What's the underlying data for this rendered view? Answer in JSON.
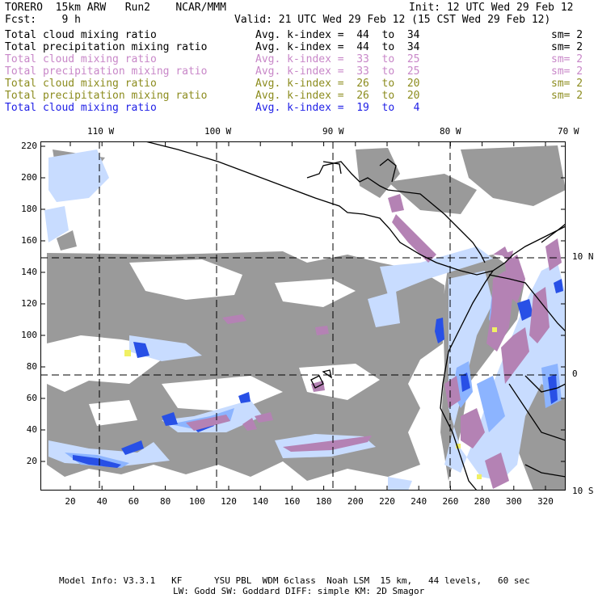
{
  "header": {
    "title": "TORERO  15km ARW   Run2    NCAR/MMM",
    "init": "Init: 12 UTC Wed 29 Feb 12",
    "forecast": "Fcst:    9 h",
    "valid": "Valid: 21 UTC Wed 29 Feb 12 (15 CST Wed 29 Feb 12)"
  },
  "legend": [
    {
      "field": "Total cloud mixing ratio",
      "index": "Avg. k-index =  44  to  34",
      "smooth": "sm= 2",
      "color": "#000000"
    },
    {
      "field": "Total precipitation mixing ratio",
      "index": "Avg. k-index =  44  to  34",
      "smooth": "sm= 2",
      "color": "#000000"
    },
    {
      "field": "Total cloud mixing ratio",
      "index": "Avg. k-index =  33  to  25",
      "smooth": "sm= 2",
      "color": "#c887c8"
    },
    {
      "field": "Total precipitation mixing ratio",
      "index": "Avg. k-index =  33  to  25",
      "smooth": "sm= 2",
      "color": "#c887c8"
    },
    {
      "field": "Total cloud mixing ratio",
      "index": "Avg. k-index =  26  to  20",
      "smooth": "sm= 2",
      "color": "#8c8c1e"
    },
    {
      "field": "Total precipitation mixing ratio",
      "index": "Avg. k-index =  26  to  20",
      "smooth": "sm= 2",
      "color": "#8c8c1e"
    },
    {
      "field": "Total cloud mixing ratio",
      "index": "Avg. k-index =  19  to   4",
      "smooth": "",
      "color": "#1e1ee6"
    }
  ],
  "axes": {
    "top_ticks": [
      "110 W",
      "100 W",
      "90 W",
      "80 W",
      "70 W"
    ],
    "left_ticks": [
      "220",
      "200",
      "180",
      "160",
      "140",
      "120",
      "100",
      "80",
      "60",
      "40",
      "20"
    ],
    "bottom_ticks": [
      "20",
      "40",
      "60",
      "80",
      "100",
      "120",
      "140",
      "160",
      "180",
      "200",
      "220",
      "240",
      "260",
      "280",
      "300",
      "320"
    ],
    "right_ticks": [
      "10 N",
      "0",
      "10 S"
    ]
  },
  "footer": {
    "line1": "Model Info: V3.3.1   KF      YSU PBL  WDM 6class  Noah LSM  15 km,   44 levels,   60 sec",
    "line2": "LW: Godd SW: Goddard DIFF: simple KM: 2D Smagor"
  },
  "colors": {
    "cloud_gray": "#9a9a9a",
    "pale_blue": "#c8dcff",
    "light_blue": "#8cb4ff",
    "blue": "#2850e6",
    "dark_blue": "#0a14b4",
    "purple": "#b482b4",
    "yellow": "#f0f064"
  }
}
